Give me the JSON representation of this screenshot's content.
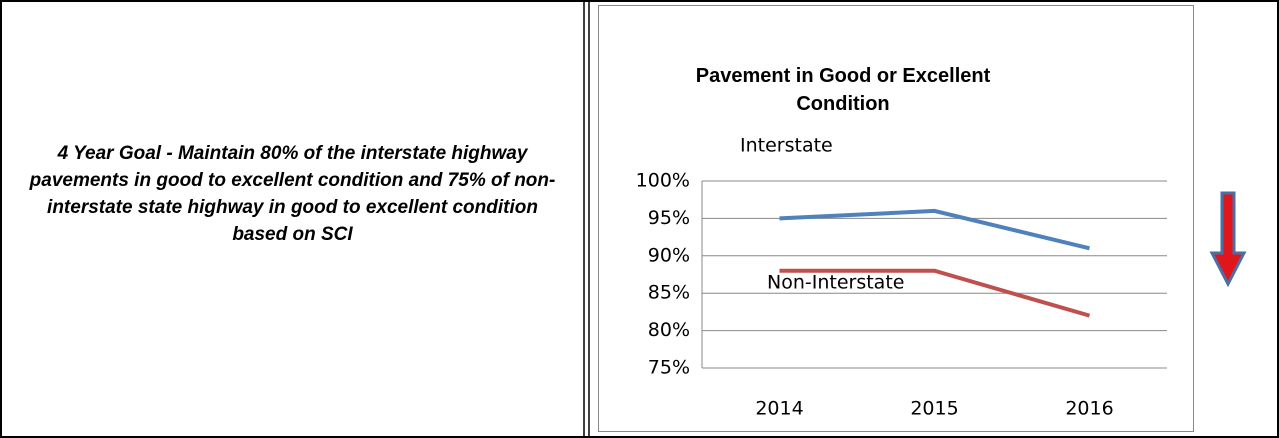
{
  "goal": "4 Year Goal - Maintain 80% of the interstate highway pavements in good to excellent condition and 75% of non-interstate state highway in good to excellent  condition based on SCI",
  "chart_data": {
    "type": "line",
    "title": "Pavement in Good or Excellent Condition",
    "categories": [
      "2014",
      "2015",
      "2016"
    ],
    "series": [
      {
        "name": "Interstate",
        "color": "#4f81bd",
        "values": [
          95,
          96,
          91
        ]
      },
      {
        "name": "Non-Interstate",
        "color": "#c0504d",
        "values": [
          88,
          88,
          82
        ]
      }
    ],
    "ylim": [
      75,
      100
    ],
    "yticks": [
      {
        "value": 75,
        "label": "75%"
      },
      {
        "value": 80,
        "label": "80%"
      },
      {
        "value": 85,
        "label": "85%"
      },
      {
        "value": 90,
        "label": "90%"
      },
      {
        "value": 95,
        "label": "95%"
      },
      {
        "value": 100,
        "label": "100%"
      }
    ],
    "grid": true
  }
}
